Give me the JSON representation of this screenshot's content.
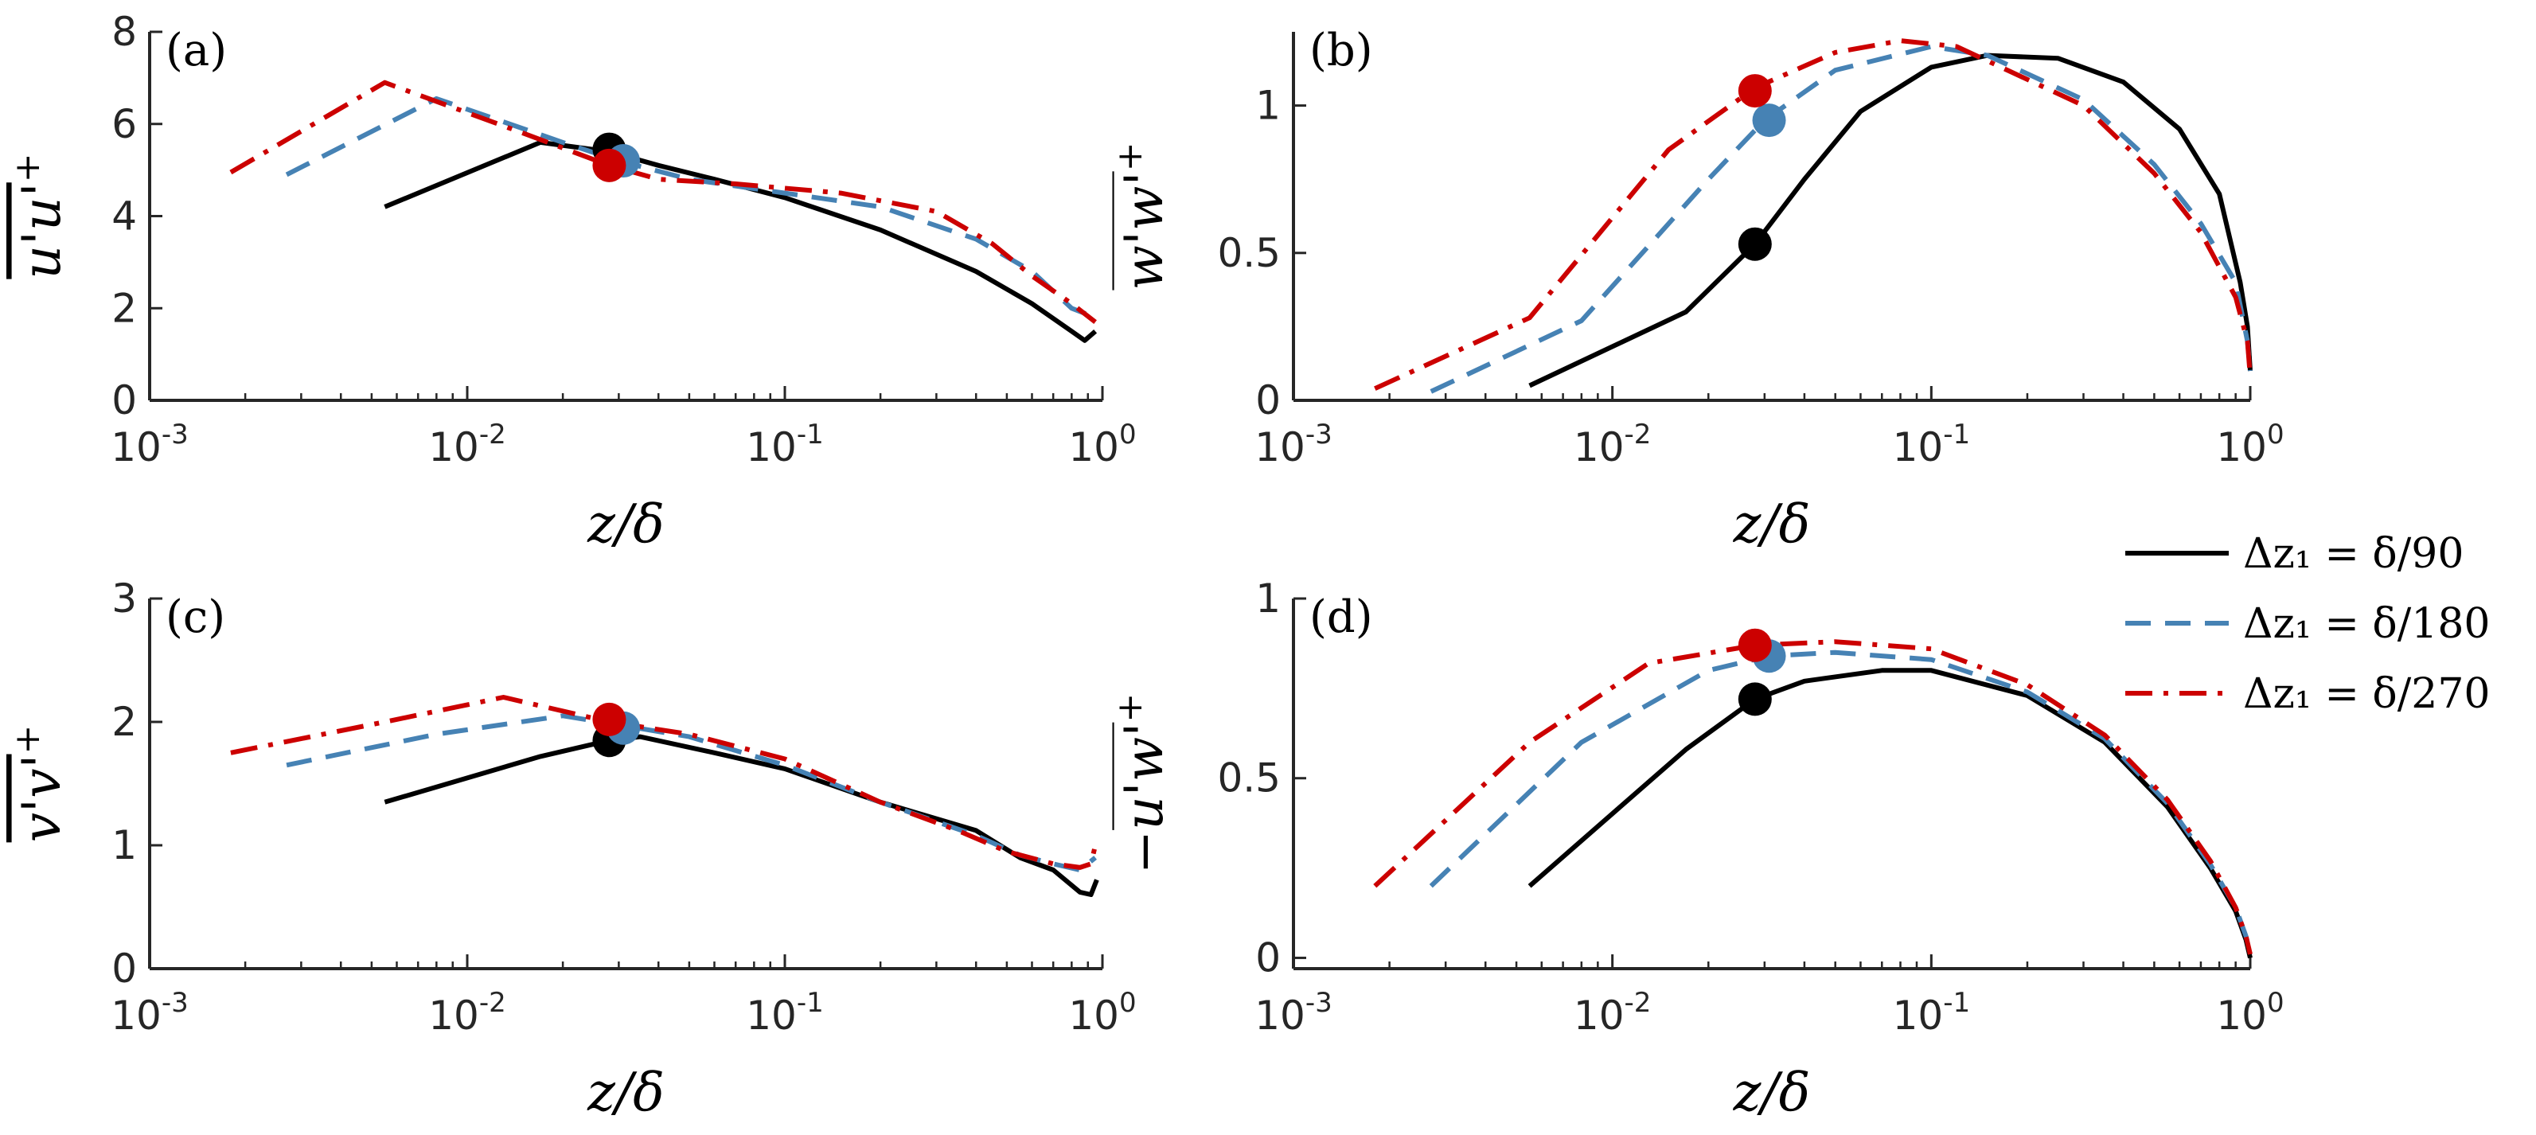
{
  "chart_data": [
    {
      "panel": "(a)",
      "type": "line",
      "xscale": "log",
      "xlim": [
        0.001,
        1
      ],
      "ylim": [
        0,
        8
      ],
      "yticks": [
        "0",
        "2",
        "4",
        "6",
        "8"
      ],
      "xticks": [
        "10^-3",
        "10^-2",
        "10^-1",
        "10^0"
      ],
      "xlabel": "z/δ",
      "ylabel": "u'u'+ (overlined)",
      "series": [
        {
          "name": "Δz1 = δ/90",
          "x": [
            0.0055,
            0.017,
            0.028,
            0.04,
            0.06,
            0.1,
            0.2,
            0.4,
            0.6,
            0.8,
            0.88,
            0.95
          ],
          "y": [
            4.2,
            5.6,
            5.4,
            5.1,
            4.8,
            4.4,
            3.7,
            2.8,
            2.1,
            1.5,
            1.3,
            1.5
          ]
        },
        {
          "name": "Δz1 = δ/180",
          "x": [
            0.0027,
            0.008,
            0.02,
            0.03,
            0.05,
            0.1,
            0.2,
            0.4,
            0.6,
            0.8,
            0.95
          ],
          "y": [
            4.9,
            6.55,
            5.6,
            5.2,
            4.8,
            4.5,
            4.2,
            3.5,
            2.8,
            2.0,
            1.8
          ]
        },
        {
          "name": "Δz1 = δ/270",
          "x": [
            0.0018,
            0.0055,
            0.015,
            0.028,
            0.04,
            0.07,
            0.15,
            0.3,
            0.45,
            0.6,
            0.8,
            0.95
          ],
          "y": [
            4.95,
            6.9,
            5.8,
            5.1,
            4.8,
            4.7,
            4.5,
            4.1,
            3.4,
            2.7,
            2.1,
            1.7
          ]
        }
      ],
      "markers": [
        {
          "series": "Δz1 = δ/90",
          "x": 0.028,
          "y": 5.45
        },
        {
          "series": "Δz1 = δ/180",
          "x": 0.031,
          "y": 5.2
        },
        {
          "series": "Δz1 = δ/270",
          "x": 0.028,
          "y": 5.1
        }
      ]
    },
    {
      "panel": "(b)",
      "type": "line",
      "xscale": "log",
      "xlim": [
        0.001,
        1
      ],
      "ylim": [
        0,
        1.25
      ],
      "yticks": [
        "0",
        "0.5",
        "1"
      ],
      "xticks": [
        "10^-3",
        "10^-2",
        "10^-1",
        "10^0"
      ],
      "xlabel": "z/δ",
      "ylabel": "w'w'+ (overlined)",
      "series": [
        {
          "name": "Δz1 = δ/90",
          "x": [
            0.0055,
            0.017,
            0.028,
            0.04,
            0.06,
            0.1,
            0.15,
            0.25,
            0.4,
            0.6,
            0.8,
            0.93,
            0.98,
            1.0
          ],
          "y": [
            0.05,
            0.3,
            0.53,
            0.75,
            0.98,
            1.13,
            1.17,
            1.16,
            1.08,
            0.92,
            0.7,
            0.4,
            0.25,
            0.1
          ]
        },
        {
          "name": "Δz1 = δ/180",
          "x": [
            0.0027,
            0.008,
            0.02,
            0.03,
            0.05,
            0.1,
            0.15,
            0.3,
            0.5,
            0.7,
            0.9,
            0.98,
            1.0
          ],
          "y": [
            0.03,
            0.27,
            0.75,
            0.95,
            1.12,
            1.2,
            1.17,
            1.02,
            0.8,
            0.6,
            0.4,
            0.2,
            0.1
          ]
        },
        {
          "name": "Δz1 = δ/270",
          "x": [
            0.0018,
            0.0055,
            0.015,
            0.028,
            0.05,
            0.08,
            0.12,
            0.3,
            0.5,
            0.7,
            0.9,
            0.98,
            1.0
          ],
          "y": [
            0.04,
            0.28,
            0.85,
            1.06,
            1.18,
            1.22,
            1.2,
            1.0,
            0.77,
            0.57,
            0.35,
            0.2,
            0.08
          ]
        }
      ],
      "markers": [
        {
          "series": "Δz1 = δ/90",
          "x": 0.028,
          "y": 0.53
        },
        {
          "series": "Δz1 = δ/180",
          "x": 0.031,
          "y": 0.95
        },
        {
          "series": "Δz1 = δ/270",
          "x": 0.028,
          "y": 1.05
        }
      ]
    },
    {
      "panel": "(c)",
      "type": "line",
      "xscale": "log",
      "xlim": [
        0.001,
        1
      ],
      "ylim": [
        0,
        3
      ],
      "yticks": [
        "0",
        "1",
        "2",
        "3"
      ],
      "xticks": [
        "10^-3",
        "10^-2",
        "10^-1",
        "10^0"
      ],
      "xlabel": "z/δ",
      "ylabel": "v'v'+ (overlined)",
      "series": [
        {
          "name": "Δz1 = δ/90",
          "x": [
            0.0055,
            0.017,
            0.028,
            0.035,
            0.06,
            0.1,
            0.2,
            0.4,
            0.55,
            0.7,
            0.85,
            0.92,
            0.96
          ],
          "y": [
            1.35,
            1.72,
            1.85,
            1.88,
            1.75,
            1.62,
            1.35,
            1.12,
            0.9,
            0.8,
            0.62,
            0.6,
            0.72
          ]
        },
        {
          "name": "Δz1 = δ/180",
          "x": [
            0.0027,
            0.008,
            0.02,
            0.031,
            0.05,
            0.1,
            0.2,
            0.4,
            0.55,
            0.7,
            0.85,
            0.95
          ],
          "y": [
            1.65,
            1.9,
            2.05,
            1.97,
            1.88,
            1.65,
            1.35,
            1.08,
            0.92,
            0.85,
            0.8,
            0.9
          ]
        },
        {
          "name": "Δz1 = δ/270",
          "x": [
            0.0018,
            0.0055,
            0.013,
            0.028,
            0.05,
            0.1,
            0.2,
            0.35,
            0.5,
            0.7,
            0.85,
            0.92,
            0.96
          ],
          "y": [
            1.75,
            2.0,
            2.2,
            2.0,
            1.9,
            1.7,
            1.35,
            1.12,
            0.95,
            0.85,
            0.82,
            0.85,
            1.05
          ]
        }
      ],
      "markers": [
        {
          "series": "Δz1 = δ/90",
          "x": 0.028,
          "y": 1.85
        },
        {
          "series": "Δz1 = δ/180",
          "x": 0.031,
          "y": 1.95
        },
        {
          "series": "Δz1 = δ/270",
          "x": 0.028,
          "y": 2.02
        }
      ]
    },
    {
      "panel": "(d)",
      "type": "line",
      "xscale": "log",
      "xlim": [
        0.001,
        1
      ],
      "ylim": [
        -0.03,
        1
      ],
      "yticks": [
        "0",
        "0.5",
        "1"
      ],
      "xticks": [
        "10^-3",
        "10^-2",
        "10^-1",
        "10^0"
      ],
      "xlabel": "z/δ",
      "ylabel": "−u'w'+ (overlined)",
      "series": [
        {
          "name": "Δz1 = δ/90",
          "x": [
            0.0055,
            0.017,
            0.028,
            0.04,
            0.07,
            0.1,
            0.2,
            0.35,
            0.55,
            0.75,
            0.9,
            0.97,
            1.0
          ],
          "y": [
            0.2,
            0.58,
            0.72,
            0.77,
            0.8,
            0.8,
            0.73,
            0.6,
            0.42,
            0.25,
            0.13,
            0.05,
            0.0
          ]
        },
        {
          "name": "Δz1 = δ/180",
          "x": [
            0.0027,
            0.008,
            0.02,
            0.031,
            0.05,
            0.1,
            0.2,
            0.35,
            0.55,
            0.75,
            0.9,
            0.97,
            1.0
          ],
          "y": [
            0.2,
            0.6,
            0.8,
            0.84,
            0.85,
            0.83,
            0.74,
            0.61,
            0.43,
            0.26,
            0.14,
            0.06,
            0.01
          ]
        },
        {
          "name": "Δz1 = δ/270",
          "x": [
            0.0018,
            0.0055,
            0.013,
            0.028,
            0.05,
            0.1,
            0.2,
            0.35,
            0.55,
            0.75,
            0.9,
            0.97,
            1.0
          ],
          "y": [
            0.2,
            0.6,
            0.82,
            0.87,
            0.88,
            0.86,
            0.76,
            0.62,
            0.44,
            0.27,
            0.14,
            0.06,
            0.01
          ]
        }
      ],
      "markers": [
        {
          "series": "Δz1 = δ/90",
          "x": 0.028,
          "y": 0.72
        },
        {
          "series": "Δz1 = δ/180",
          "x": 0.031,
          "y": 0.84
        },
        {
          "series": "Δz1 = δ/270",
          "x": 0.028,
          "y": 0.87
        }
      ]
    }
  ],
  "legend": {
    "placement": "right",
    "entries": [
      {
        "label": "Δz₁ = δ/90",
        "color": "#000000",
        "dash": "solid"
      },
      {
        "label": "Δz₁ = δ/180",
        "color": "#4682B4",
        "dash": "dashed"
      },
      {
        "label": "Δz₁ = δ/270",
        "color": "#CC0000",
        "dash": "dashdot"
      }
    ]
  },
  "colors": {
    "series_90": "#000000",
    "series_180": "#4682B4",
    "series_270": "#CC0000"
  }
}
